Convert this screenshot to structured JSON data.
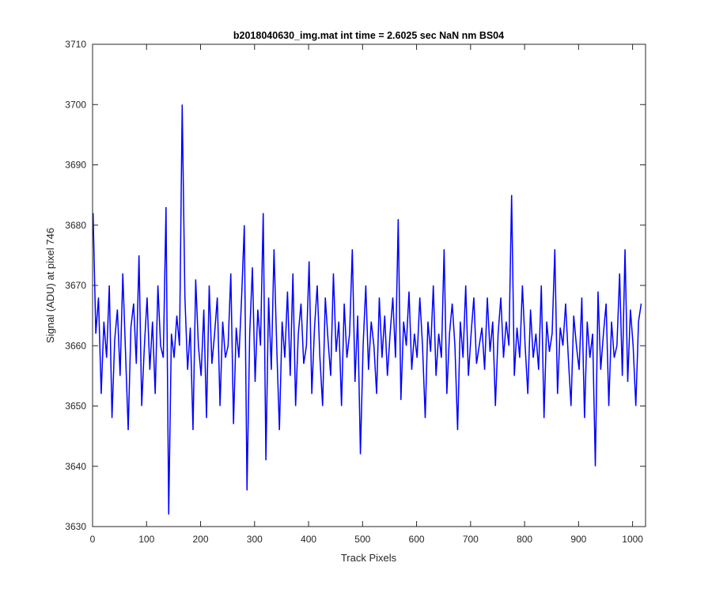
{
  "chart_data": {
    "type": "line",
    "title": "b2018040630_img.mat int time = 2.6025 sec  NaN nm BS04",
    "xlabel": "Track Pixels",
    "ylabel": "Signal (ADU) at pixel 746",
    "xlim": [
      0,
      1024
    ],
    "ylim": [
      3630,
      3710
    ],
    "xticks": [
      0,
      100,
      200,
      300,
      400,
      500,
      600,
      700,
      800,
      900,
      1000
    ],
    "yticks": [
      3630,
      3640,
      3650,
      3660,
      3670,
      3680,
      3690,
      3700,
      3710
    ],
    "grid": false,
    "line_color": "#0000ff",
    "series": [
      {
        "x_start": 1,
        "x_step": 5,
        "values": [
          3682,
          3662,
          3668,
          3652,
          3664,
          3658,
          3670,
          3648,
          3661,
          3666,
          3655,
          3672,
          3659,
          3646,
          3663,
          3667,
          3657,
          3675,
          3650,
          3660,
          3668,
          3656,
          3664,
          3652,
          3670,
          3660,
          3658,
          3683,
          3632,
          3662,
          3658,
          3665,
          3660,
          3700,
          3668,
          3656,
          3663,
          3646,
          3671,
          3660,
          3655,
          3666,
          3648,
          3670,
          3657,
          3662,
          3668,
          3650,
          3664,
          3658,
          3660,
          3672,
          3647,
          3663,
          3658,
          3668,
          3680,
          3636,
          3662,
          3673,
          3654,
          3666,
          3660,
          3682,
          3641,
          3668,
          3656,
          3676,
          3660,
          3646,
          3664,
          3658,
          3669,
          3655,
          3672,
          3650,
          3662,
          3667,
          3657,
          3660,
          3674,
          3652,
          3663,
          3670,
          3658,
          3650,
          3668,
          3661,
          3655,
          3672,
          3659,
          3664,
          3650,
          3667,
          3658,
          3662,
          3676,
          3654,
          3665,
          3642,
          3660,
          3670,
          3656,
          3664,
          3660,
          3652,
          3668,
          3658,
          3665,
          3655,
          3662,
          3668,
          3658,
          3681,
          3651,
          3664,
          3660,
          3669,
          3656,
          3662,
          3658,
          3668,
          3660,
          3648,
          3664,
          3659,
          3670,
          3655,
          3662,
          3658,
          3676,
          3652,
          3662,
          3667,
          3660,
          3646,
          3664,
          3658,
          3670,
          3655,
          3662,
          3668,
          3657,
          3660,
          3663,
          3656,
          3668,
          3659,
          3664,
          3650,
          3662,
          3668,
          3658,
          3664,
          3660,
          3685,
          3655,
          3663,
          3658,
          3670,
          3660,
          3652,
          3666,
          3658,
          3662,
          3656,
          3670,
          3648,
          3664,
          3659,
          3662,
          3676,
          3652,
          3663,
          3660,
          3667,
          3658,
          3650,
          3665,
          3660,
          3656,
          3668,
          3648,
          3664,
          3658,
          3662,
          3640,
          3669,
          3656,
          3662,
          3667,
          3650,
          3664,
          3658,
          3660,
          3672,
          3655,
          3676,
          3654,
          3666,
          3660,
          3650,
          3664,
          3667
        ]
      }
    ]
  }
}
